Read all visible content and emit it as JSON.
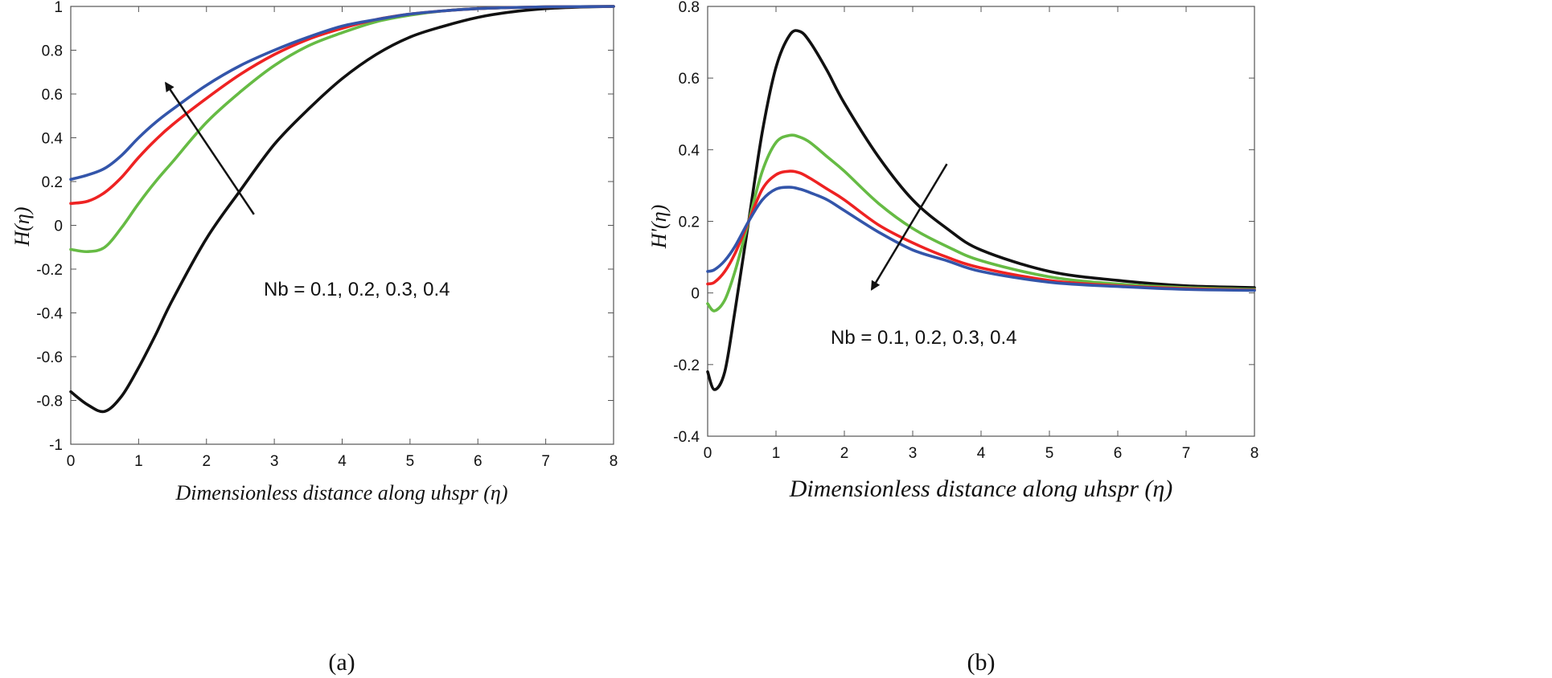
{
  "chart_data": [
    {
      "type": "line",
      "panel": "a",
      "caption": "(a)",
      "ylabel": "H(η)",
      "xlabel": "Dimensionless distance along uhspr (η)",
      "annotation": "Nb = 0.1, 0.2, 0.3, 0.4",
      "xlim": [
        0,
        8
      ],
      "ylim": [
        -1,
        1
      ],
      "xticks": [
        "0",
        "1",
        "2",
        "3",
        "4",
        "5",
        "6",
        "7",
        "8"
      ],
      "yticks": [
        "-1",
        "-0.8",
        "-0.6",
        "-0.4",
        "-0.2",
        "0",
        "0.2",
        "0.4",
        "0.6",
        "0.8",
        "1"
      ],
      "x": [
        0,
        0.25,
        0.5,
        0.75,
        1,
        1.25,
        1.5,
        2,
        2.5,
        3,
        3.5,
        4,
        4.5,
        5,
        5.5,
        6,
        6.5,
        7,
        7.5,
        8
      ],
      "series": [
        {
          "name": "Nb = 0.1",
          "color": "#111111",
          "values": [
            -0.76,
            -0.82,
            -0.85,
            -0.78,
            -0.65,
            -0.5,
            -0.34,
            -0.06,
            0.16,
            0.37,
            0.53,
            0.67,
            0.78,
            0.86,
            0.91,
            0.95,
            0.975,
            0.99,
            0.997,
            1.0
          ]
        },
        {
          "name": "Nb = 0.2",
          "color": "#66bb44",
          "values": [
            -0.11,
            -0.12,
            -0.1,
            -0.01,
            0.1,
            0.2,
            0.29,
            0.47,
            0.61,
            0.73,
            0.82,
            0.88,
            0.93,
            0.96,
            0.98,
            0.99,
            0.995,
            0.998,
            0.999,
            1.0
          ]
        },
        {
          "name": "Nb = 0.3",
          "color": "#ee2222",
          "values": [
            0.1,
            0.11,
            0.15,
            0.22,
            0.31,
            0.39,
            0.46,
            0.58,
            0.69,
            0.78,
            0.85,
            0.9,
            0.94,
            0.965,
            0.98,
            0.99,
            0.995,
            0.998,
            0.999,
            1.0
          ]
        },
        {
          "name": "Nb = 0.4",
          "color": "#3355aa",
          "values": [
            0.21,
            0.23,
            0.26,
            0.32,
            0.4,
            0.47,
            0.53,
            0.64,
            0.73,
            0.8,
            0.86,
            0.91,
            0.94,
            0.965,
            0.98,
            0.99,
            0.995,
            0.998,
            0.999,
            1.0
          ]
        }
      ],
      "arrow": {
        "from": [
          2.7,
          0.05
        ],
        "to": [
          1.4,
          0.65
        ]
      }
    },
    {
      "type": "line",
      "panel": "b",
      "caption": "(b)",
      "ylabel": "H'(η)",
      "xlabel": "Dimensionless distance along uhspr (η)",
      "annotation": "Nb = 0.1, 0.2, 0.3, 0.4",
      "xlim": [
        0,
        8
      ],
      "ylim": [
        -0.4,
        0.8
      ],
      "xticks": [
        "0",
        "1",
        "2",
        "3",
        "4",
        "5",
        "6",
        "7",
        "8"
      ],
      "yticks": [
        "-0.4",
        "-0.2",
        "0",
        "0.2",
        "0.4",
        "0.6",
        "0.8"
      ],
      "x": [
        0,
        0.1,
        0.25,
        0.4,
        0.6,
        0.8,
        1.0,
        1.2,
        1.35,
        1.5,
        1.75,
        2,
        2.5,
        3,
        3.5,
        4,
        5,
        6,
        7,
        8
      ],
      "series": [
        {
          "name": "Nb = 0.1",
          "color": "#111111",
          "values": [
            -0.22,
            -0.27,
            -0.22,
            -0.05,
            0.2,
            0.45,
            0.63,
            0.72,
            0.73,
            0.7,
            0.62,
            0.53,
            0.38,
            0.26,
            0.18,
            0.12,
            0.06,
            0.035,
            0.02,
            0.015
          ]
        },
        {
          "name": "Nb = 0.2",
          "color": "#66bb44",
          "values": [
            -0.03,
            -0.05,
            -0.02,
            0.06,
            0.2,
            0.34,
            0.42,
            0.44,
            0.435,
            0.42,
            0.38,
            0.34,
            0.25,
            0.18,
            0.13,
            0.09,
            0.045,
            0.025,
            0.015,
            0.01
          ]
        },
        {
          "name": "Nb = 0.3",
          "color": "#ee2222",
          "values": [
            0.025,
            0.03,
            0.06,
            0.11,
            0.2,
            0.29,
            0.33,
            0.34,
            0.335,
            0.32,
            0.29,
            0.26,
            0.19,
            0.14,
            0.1,
            0.07,
            0.035,
            0.02,
            0.012,
            0.008
          ]
        },
        {
          "name": "Nb = 0.4",
          "color": "#3355aa",
          "values": [
            0.06,
            0.065,
            0.09,
            0.13,
            0.2,
            0.26,
            0.29,
            0.295,
            0.29,
            0.28,
            0.26,
            0.23,
            0.17,
            0.12,
            0.09,
            0.06,
            0.03,
            0.018,
            0.01,
            0.007
          ]
        }
      ],
      "arrow": {
        "from": [
          3.5,
          0.36
        ],
        "to": [
          2.4,
          0.01
        ]
      }
    }
  ]
}
